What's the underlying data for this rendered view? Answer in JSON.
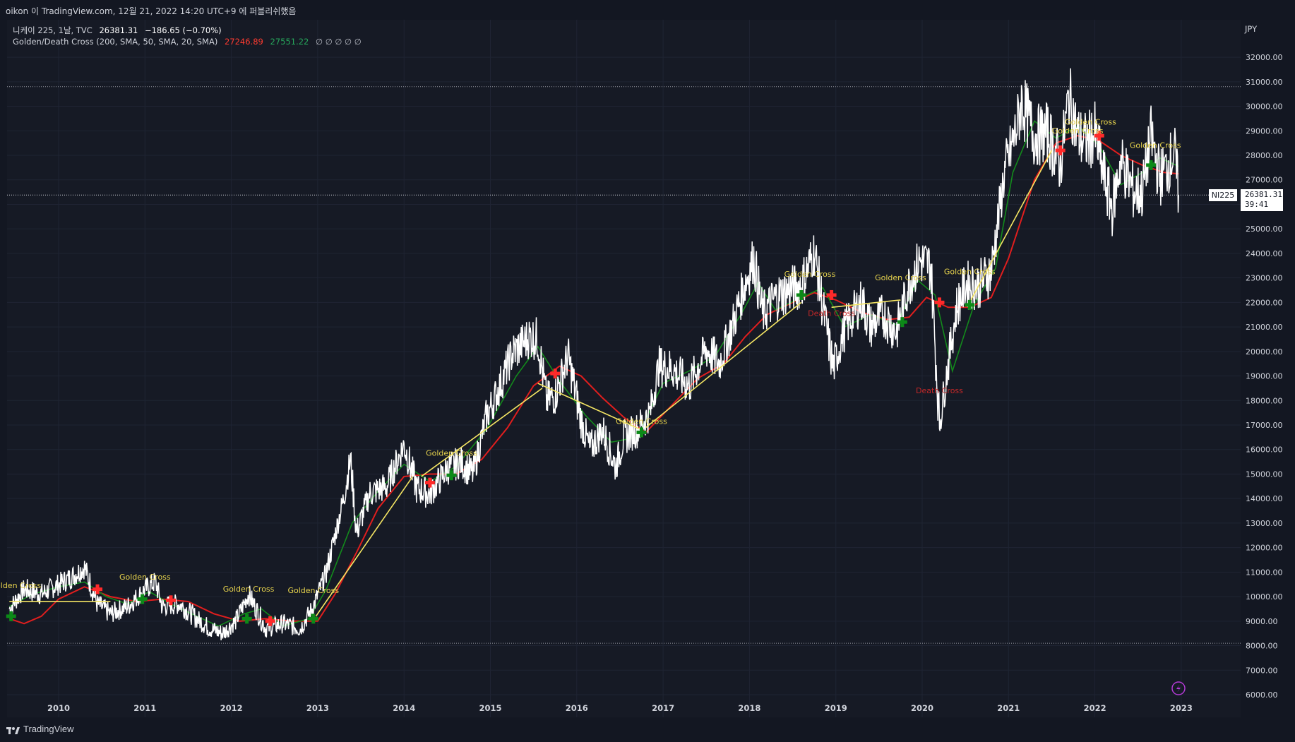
{
  "topbar": {
    "caption": "oikon 이 TradingView.com, 12월 21, 2022 14:20 UTC+9 에 퍼블리쉬했음"
  },
  "header": {
    "symbol": "니케이 225, 1날, TVC",
    "price": "26381.31",
    "change": "−186.65 (−0.70%)"
  },
  "indicator": {
    "name": "Golden/Death Cross (200, SMA, 50, SMA, 20, SMA)",
    "value_slow": "27246.89",
    "value_fast": "27551.22",
    "zeros": "∅ ∅ ∅ ∅ ∅"
  },
  "axis": {
    "currency": "JPY",
    "symbol_tag": "NI225",
    "last_price": "26381.31",
    "countdown": "39:41"
  },
  "footer": {
    "brand": "TradingView"
  },
  "colors": {
    "background": "#161a25",
    "price_line": "#ffffff",
    "slow_ma": "#e01e1e",
    "fast_ma": "#138a1c",
    "trend_line": "#f5e663",
    "golden_label": "#e8d44d",
    "death_label": "#c62828"
  },
  "chart_data": {
    "type": "line",
    "title": "",
    "xlabel": "",
    "ylabel": "",
    "ylim": [
      6000,
      32500
    ],
    "y_ticks": [
      6000,
      7000,
      8000,
      9000,
      10000,
      11000,
      12000,
      13000,
      14000,
      15000,
      16000,
      17000,
      18000,
      19000,
      20000,
      21000,
      22000,
      23000,
      24000,
      25000,
      26000,
      27000,
      28000,
      29000,
      30000,
      31000,
      32000
    ],
    "x_range": [
      2009.43,
      2024.05
    ],
    "x_ticks": [
      "2010",
      "2011",
      "2012",
      "2013",
      "2014",
      "2015",
      "2016",
      "2017",
      "2018",
      "2019",
      "2020",
      "2021",
      "2022",
      "2023"
    ],
    "last_price": 26381.31,
    "dotted_levels": [
      30800,
      8100
    ],
    "series": [
      {
        "role": "price",
        "points": [
          [
            2009.43,
            9500
          ],
          [
            2009.6,
            10300
          ],
          [
            2009.8,
            10100
          ],
          [
            2010.0,
            10500
          ],
          [
            2010.15,
            10800
          ],
          [
            2010.3,
            11200
          ],
          [
            2010.45,
            9700
          ],
          [
            2010.6,
            9300
          ],
          [
            2010.8,
            9600
          ],
          [
            2011.0,
            10300
          ],
          [
            2011.12,
            10600
          ],
          [
            2011.2,
            9600
          ],
          [
            2011.4,
            9700
          ],
          [
            2011.6,
            9100
          ],
          [
            2011.75,
            8700
          ],
          [
            2011.9,
            8500
          ],
          [
            2012.05,
            9000
          ],
          [
            2012.2,
            10100
          ],
          [
            2012.4,
            8700
          ],
          [
            2012.6,
            8900
          ],
          [
            2012.8,
            8700
          ],
          [
            2012.95,
            9600
          ],
          [
            2013.1,
            11000
          ],
          [
            2013.3,
            14000
          ],
          [
            2013.38,
            15600
          ],
          [
            2013.45,
            12600
          ],
          [
            2013.6,
            14200
          ],
          [
            2013.8,
            14500
          ],
          [
            2014.0,
            16200
          ],
          [
            2014.15,
            14400
          ],
          [
            2014.3,
            14200
          ],
          [
            2014.5,
            15200
          ],
          [
            2014.65,
            15500
          ],
          [
            2014.8,
            15000
          ],
          [
            2014.95,
            17300
          ],
          [
            2015.1,
            18500
          ],
          [
            2015.25,
            19900
          ],
          [
            2015.45,
            20600
          ],
          [
            2015.55,
            20500
          ],
          [
            2015.65,
            18000
          ],
          [
            2015.75,
            18200
          ],
          [
            2015.9,
            19800
          ],
          [
            2016.05,
            17200
          ],
          [
            2016.15,
            16000
          ],
          [
            2016.3,
            16800
          ],
          [
            2016.45,
            15300
          ],
          [
            2016.55,
            16500
          ],
          [
            2016.7,
            16800
          ],
          [
            2016.85,
            17500
          ],
          [
            2016.95,
            19400
          ],
          [
            2017.1,
            19300
          ],
          [
            2017.3,
            18600
          ],
          [
            2017.5,
            20100
          ],
          [
            2017.65,
            19500
          ],
          [
            2017.8,
            21000
          ],
          [
            2017.95,
            22800
          ],
          [
            2018.05,
            23800
          ],
          [
            2018.15,
            21500
          ],
          [
            2018.3,
            22200
          ],
          [
            2018.45,
            22500
          ],
          [
            2018.6,
            22700
          ],
          [
            2018.75,
            24100
          ],
          [
            2018.85,
            21800
          ],
          [
            2018.97,
            19300
          ],
          [
            2019.1,
            20900
          ],
          [
            2019.3,
            22100
          ],
          [
            2019.4,
            21000
          ],
          [
            2019.55,
            21500
          ],
          [
            2019.7,
            20800
          ],
          [
            2019.85,
            22800
          ],
          [
            2019.97,
            23700
          ],
          [
            2020.1,
            23500
          ],
          [
            2020.2,
            17000
          ],
          [
            2020.3,
            19500
          ],
          [
            2020.4,
            21800
          ],
          [
            2020.5,
            22700
          ],
          [
            2020.65,
            22700
          ],
          [
            2020.8,
            23300
          ],
          [
            2020.95,
            27200
          ],
          [
            2021.1,
            29200
          ],
          [
            2021.15,
            30200
          ],
          [
            2021.3,
            28800
          ],
          [
            2021.45,
            28900
          ],
          [
            2021.6,
            27600
          ],
          [
            2021.7,
            30500
          ],
          [
            2021.8,
            28800
          ],
          [
            2021.9,
            28500
          ],
          [
            2022.0,
            28900
          ],
          [
            2022.1,
            27200
          ],
          [
            2022.2,
            25800
          ],
          [
            2022.3,
            27800
          ],
          [
            2022.45,
            26500
          ],
          [
            2022.55,
            26500
          ],
          [
            2022.65,
            28800
          ],
          [
            2022.75,
            27100
          ],
          [
            2022.85,
            27600
          ],
          [
            2022.92,
            28200
          ],
          [
            2022.97,
            26381
          ]
        ]
      },
      {
        "role": "slow_ma",
        "points": [
          [
            2009.43,
            9100
          ],
          [
            2009.6,
            8900
          ],
          [
            2009.8,
            9200
          ],
          [
            2010.0,
            9900
          ],
          [
            2010.3,
            10400
          ],
          [
            2010.6,
            10000
          ],
          [
            2010.9,
            9800
          ],
          [
            2011.2,
            9900
          ],
          [
            2011.5,
            9800
          ],
          [
            2011.8,
            9300
          ],
          [
            2012.1,
            9000
          ],
          [
            2012.4,
            9100
          ],
          [
            2012.7,
            9000
          ],
          [
            2013.0,
            9000
          ],
          [
            2013.2,
            10100
          ],
          [
            2013.45,
            11800
          ],
          [
            2013.7,
            13600
          ],
          [
            2014.0,
            14900
          ],
          [
            2014.3,
            15000
          ],
          [
            2014.6,
            15000
          ],
          [
            2014.9,
            15600
          ],
          [
            2015.2,
            16900
          ],
          [
            2015.5,
            18600
          ],
          [
            2015.8,
            19400
          ],
          [
            2016.05,
            19000
          ],
          [
            2016.3,
            18100
          ],
          [
            2016.55,
            17300
          ],
          [
            2016.8,
            16700
          ],
          [
            2017.1,
            17800
          ],
          [
            2017.4,
            18900
          ],
          [
            2017.7,
            19500
          ],
          [
            2017.95,
            20600
          ],
          [
            2018.2,
            21500
          ],
          [
            2018.5,
            22000
          ],
          [
            2018.75,
            22400
          ],
          [
            2019.0,
            22100
          ],
          [
            2019.3,
            21600
          ],
          [
            2019.6,
            21300
          ],
          [
            2019.85,
            21400
          ],
          [
            2020.05,
            22200
          ],
          [
            2020.3,
            21800
          ],
          [
            2020.55,
            21800
          ],
          [
            2020.8,
            22200
          ],
          [
            2021.0,
            23800
          ],
          [
            2021.3,
            27000
          ],
          [
            2021.55,
            28500
          ],
          [
            2021.8,
            28800
          ],
          [
            2022.05,
            28600
          ],
          [
            2022.3,
            28000
          ],
          [
            2022.55,
            27600
          ],
          [
            2022.8,
            27300
          ],
          [
            2022.97,
            27247
          ]
        ]
      },
      {
        "role": "fast_ma",
        "points": [
          [
            2009.43,
            9600
          ],
          [
            2009.7,
            10100
          ],
          [
            2010.0,
            10400
          ],
          [
            2010.3,
            10600
          ],
          [
            2010.55,
            10000
          ],
          [
            2010.8,
            9700
          ],
          [
            2011.05,
            10200
          ],
          [
            2011.3,
            9700
          ],
          [
            2011.6,
            9200
          ],
          [
            2011.85,
            8800
          ],
          [
            2012.15,
            9300
          ],
          [
            2012.35,
            9500
          ],
          [
            2012.6,
            8800
          ],
          [
            2012.9,
            9100
          ],
          [
            2013.1,
            10300
          ],
          [
            2013.4,
            13000
          ],
          [
            2013.7,
            14300
          ],
          [
            2014.0,
            15400
          ],
          [
            2014.3,
            14700
          ],
          [
            2014.6,
            15300
          ],
          [
            2014.95,
            16800
          ],
          [
            2015.3,
            19000
          ],
          [
            2015.55,
            20200
          ],
          [
            2015.8,
            18800
          ],
          [
            2016.1,
            17400
          ],
          [
            2016.4,
            16300
          ],
          [
            2016.7,
            16500
          ],
          [
            2017.0,
            18700
          ],
          [
            2017.3,
            19200
          ],
          [
            2017.6,
            19800
          ],
          [
            2017.9,
            21500
          ],
          [
            2018.1,
            22800
          ],
          [
            2018.3,
            21700
          ],
          [
            2018.6,
            22200
          ],
          [
            2018.85,
            22600
          ],
          [
            2019.1,
            21000
          ],
          [
            2019.4,
            21500
          ],
          [
            2019.7,
            21100
          ],
          [
            2019.95,
            22900
          ],
          [
            2020.15,
            22300
          ],
          [
            2020.35,
            19200
          ],
          [
            2020.6,
            21900
          ],
          [
            2020.85,
            23400
          ],
          [
            2021.05,
            27300
          ],
          [
            2021.3,
            29400
          ],
          [
            2021.55,
            28700
          ],
          [
            2021.8,
            29200
          ],
          [
            2022.05,
            28400
          ],
          [
            2022.3,
            26800
          ],
          [
            2022.55,
            27300
          ],
          [
            2022.75,
            27900
          ],
          [
            2022.97,
            27551
          ]
        ]
      },
      {
        "role": "trend_segments",
        "segments": [
          [
            [
              2009.43,
              9800
            ],
            [
              2010.6,
              9800
            ]
          ],
          [
            [
              2012.98,
              9200
            ],
            [
              2014.1,
              14900
            ]
          ],
          [
            [
              2014.2,
              14900
            ],
            [
              2015.6,
              18500
            ]
          ],
          [
            [
              2015.55,
              18700
            ],
            [
              2016.75,
              16800
            ]
          ],
          [
            [
              2016.8,
              16900
            ],
            [
              2018.6,
              22000
            ]
          ],
          [
            [
              2018.95,
              21800
            ],
            [
              2019.75,
              22100
            ]
          ],
          [
            [
              2020.55,
              22000
            ],
            [
              2021.5,
              28200
            ]
          ]
        ]
      }
    ],
    "signals": [
      {
        "kind": "golden",
        "x": 2009.45,
        "y": 9200
      },
      {
        "kind": "death",
        "x": 2010.45,
        "y": 10300
      },
      {
        "kind": "golden",
        "x": 2010.97,
        "y": 9900
      },
      {
        "kind": "death",
        "x": 2011.3,
        "y": 9850
      },
      {
        "kind": "golden",
        "x": 2012.18,
        "y": 9100
      },
      {
        "kind": "death",
        "x": 2012.45,
        "y": 9000
      },
      {
        "kind": "golden",
        "x": 2012.95,
        "y": 9100
      },
      {
        "kind": "death",
        "x": 2014.3,
        "y": 14650
      },
      {
        "kind": "golden",
        "x": 2014.55,
        "y": 14950
      },
      {
        "kind": "death",
        "x": 2015.75,
        "y": 19100
      },
      {
        "kind": "golden",
        "x": 2016.75,
        "y": 16700
      },
      {
        "kind": "golden",
        "x": 2018.6,
        "y": 22300
      },
      {
        "kind": "death",
        "x": 2018.95,
        "y": 22300
      },
      {
        "kind": "golden",
        "x": 2019.77,
        "y": 21200
      },
      {
        "kind": "death",
        "x": 2020.2,
        "y": 22000
      },
      {
        "kind": "golden",
        "x": 2020.55,
        "y": 21900
      },
      {
        "kind": "death",
        "x": 2021.6,
        "y": 28200
      },
      {
        "kind": "death",
        "x": 2022.05,
        "y": 28800
      },
      {
        "kind": "golden",
        "x": 2022.65,
        "y": 27600
      }
    ],
    "annotations": [
      {
        "text": "Golden Cross",
        "kind": "golden",
        "x": 2009.5,
        "y": 10350
      },
      {
        "text": "Golden Cross",
        "kind": "golden",
        "x": 2011.0,
        "y": 10700
      },
      {
        "text": "Golden Cross",
        "kind": "golden",
        "x": 2012.2,
        "y": 10200
      },
      {
        "text": "Golden Cross",
        "kind": "golden",
        "x": 2012.95,
        "y": 10150
      },
      {
        "text": "Golden Cross",
        "kind": "golden",
        "x": 2014.55,
        "y": 15750
      },
      {
        "text": "Golden Cross",
        "kind": "golden",
        "x": 2016.75,
        "y": 17050
      },
      {
        "text": "Golden Cross",
        "kind": "golden",
        "x": 2018.7,
        "y": 23050
      },
      {
        "text": "Golden Cross",
        "kind": "golden",
        "x": 2019.75,
        "y": 22900
      },
      {
        "text": "Golden Cross",
        "kind": "golden",
        "x": 2020.55,
        "y": 23150
      },
      {
        "text": "Golden Cross",
        "kind": "golden",
        "x": 2021.95,
        "y": 29250
      },
      {
        "text": "Golden Cross",
        "kind": "golden",
        "x": 2021.8,
        "y": 28900
      },
      {
        "text": "Golden Cross",
        "kind": "golden",
        "x": 2022.7,
        "y": 28300
      },
      {
        "text": "Death Cross",
        "kind": "death",
        "x": 2020.2,
        "y": 18300
      },
      {
        "text": "Death Cross",
        "kind": "death",
        "x": 2018.95,
        "y": 21450
      }
    ]
  }
}
